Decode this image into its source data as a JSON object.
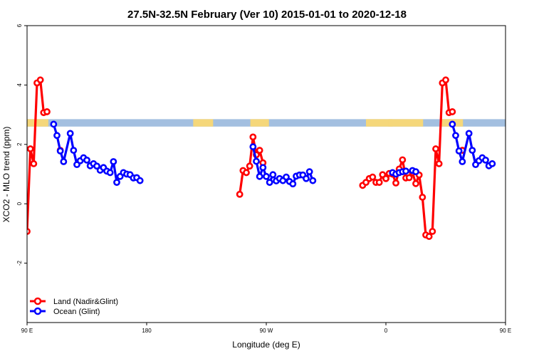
{
  "chart_data": {
    "type": "line",
    "title": "27.5N-32.5N February (Ver 10)   2015-01-01 to 2020-12-18",
    "xlabel": "Longitude (deg E)",
    "ylabel": "XCO2 - MLO trend (ppm)",
    "xlim": [
      90,
      450
    ],
    "ylim": [
      -4,
      6
    ],
    "x_ticks": [
      {
        "value": 90,
        "label": "90 E"
      },
      {
        "value": 180,
        "label": "180"
      },
      {
        "value": 270,
        "label": "90 W"
      },
      {
        "value": 360,
        "label": "0"
      },
      {
        "value": 450,
        "label": "90 E"
      },
      {
        "value": 540,
        "label": "180"
      }
    ],
    "y_ticks": [
      {
        "value": -2,
        "label": "-2"
      },
      {
        "value": 0,
        "label": "0"
      },
      {
        "value": 2,
        "label": "2"
      },
      {
        "value": 4,
        "label": "4"
      },
      {
        "value": 6,
        "label": "6"
      }
    ],
    "legend": {
      "position": "bottom-left"
    },
    "colors": {
      "land": "#ff0000",
      "ocean": "#0000ff",
      "map_land": "#f5d77a",
      "map_ocean": "#a3bfe0"
    },
    "series": [
      {
        "name": "Land (Nadir&Glint)",
        "color": "#ff0000",
        "segments": [
          [
            [
              90,
              -0.93
            ],
            [
              92.5,
              1.85
            ],
            [
              95,
              1.35
            ],
            [
              97.5,
              4.07
            ],
            [
              100,
              4.17
            ],
            [
              102.5,
              3.07
            ],
            [
              105,
              3.1
            ]
          ],
          [
            [
              115,
              1.8
            ]
          ],
          [
            [
              250,
              0.32
            ],
            [
              252.5,
              1.12
            ],
            [
              255,
              1.05
            ],
            [
              257.5,
              1.27
            ],
            [
              260,
              2.25
            ],
            [
              262.5,
              1.65
            ],
            [
              265,
              1.8
            ],
            [
              267.5,
              1.38
            ]
          ],
          [
            [
              342.5,
              0.62
            ],
            [
              345,
              0.72
            ]
          ],
          [
            [
              347.5,
              0.85
            ],
            [
              350,
              0.9
            ],
            [
              352.5,
              0.72
            ],
            [
              355,
              0.72
            ],
            [
              357.5,
              0.98
            ],
            [
              360,
              0.85
            ]
          ],
          [
            [
              360,
              0.85
            ],
            [
              362.5,
              1.02
            ],
            [
              365,
              1.0
            ],
            [
              367.5,
              0.7
            ],
            [
              370,
              1.17
            ],
            [
              372.5,
              1.48
            ],
            [
              375,
              0.87
            ],
            [
              377.5,
              0.88
            ],
            [
              380,
              1.05
            ],
            [
              382.5,
              0.68
            ],
            [
              385,
              0.97
            ],
            [
              387.5,
              0.22
            ],
            [
              390,
              -1.05
            ],
            [
              392.5,
              -1.1
            ],
            [
              395,
              -0.93
            ],
            [
              397.5,
              1.85
            ],
            [
              400,
              1.35
            ],
            [
              402.5,
              4.07
            ],
            [
              405,
              4.17
            ],
            [
              407.5,
              3.07
            ],
            [
              410,
              3.1
            ]
          ],
          [
            [
              417.5,
              1.8
            ]
          ]
        ]
      },
      {
        "name": "Ocean (Glint)",
        "color": "#0000ff",
        "segments": [
          [
            [
              110,
              2.68
            ],
            [
              112.5,
              2.3
            ],
            [
              115,
              1.78
            ],
            [
              117.5,
              1.42
            ],
            [
              122.5,
              2.37
            ],
            [
              125,
              1.8
            ],
            [
              127.5,
              1.32
            ],
            [
              130,
              1.45
            ],
            [
              132.5,
              1.55
            ],
            [
              135,
              1.47
            ],
            [
              137.5,
              1.28
            ],
            [
              140,
              1.35
            ],
            [
              142.5,
              1.27
            ],
            [
              145,
              1.13
            ],
            [
              147.5,
              1.22
            ],
            [
              150,
              1.1
            ],
            [
              152.5,
              1.05
            ],
            [
              155,
              1.42
            ],
            [
              157.5,
              0.72
            ],
            [
              160,
              0.92
            ],
            [
              162.5,
              1.05
            ],
            [
              165,
              1.0
            ],
            [
              167.5,
              0.98
            ],
            [
              170,
              0.87
            ],
            [
              172.5,
              0.88
            ],
            [
              175,
              0.78
            ]
          ],
          [
            [
              260,
              1.92
            ],
            [
              262.5,
              1.43
            ],
            [
              265,
              0.92
            ],
            [
              267.5,
              1.22
            ],
            [
              270,
              0.92
            ],
            [
              272.5,
              0.72
            ],
            [
              275,
              0.98
            ],
            [
              277.5,
              0.77
            ],
            [
              280,
              0.85
            ],
            [
              282.5,
              0.78
            ],
            [
              285,
              0.9
            ],
            [
              287.5,
              0.75
            ],
            [
              290,
              0.67
            ],
            [
              292.5,
              0.93
            ],
            [
              295,
              0.97
            ],
            [
              297.5,
              0.97
            ],
            [
              300,
              0.85
            ],
            [
              302.5,
              1.08
            ],
            [
              305,
              0.78
            ]
          ],
          [
            [
              365,
              1.05
            ],
            [
              367.5,
              1.0
            ],
            [
              370,
              1.05
            ],
            [
              372.5,
              1.08
            ],
            [
              375,
              1.1
            ]
          ],
          [
            [
              380,
              1.12
            ],
            [
              382.5,
              1.08
            ]
          ],
          [
            [
              410,
              2.68
            ],
            [
              412.5,
              2.3
            ],
            [
              415,
              1.78
            ],
            [
              417.5,
              1.42
            ],
            [
              422.5,
              2.37
            ],
            [
              425,
              1.8
            ],
            [
              427.5,
              1.32
            ],
            [
              430,
              1.45
            ],
            [
              432.5,
              1.55
            ],
            [
              435,
              1.47
            ],
            [
              437.5,
              1.28
            ],
            [
              440,
              1.35
            ]
          ]
        ]
      }
    ]
  }
}
